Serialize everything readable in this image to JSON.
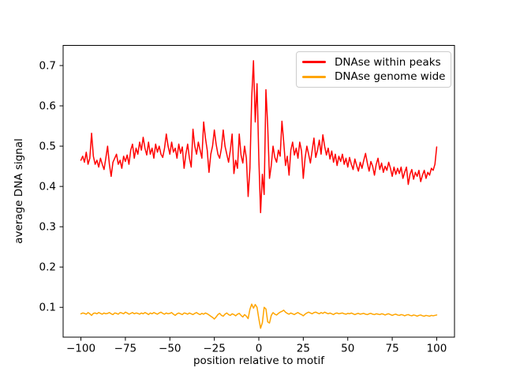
{
  "figure": {
    "background": "#ffffff"
  },
  "chart_data": {
    "type": "line",
    "title": "",
    "xlabel": "position relative to motif",
    "ylabel": "average DNA signal",
    "xlim": [
      -110,
      110
    ],
    "ylim": [
      0.026,
      0.75
    ],
    "grid": false,
    "legend": {
      "position": "upper right",
      "border_color": "#cccccc"
    },
    "x_ticks": [
      {
        "value": -100,
        "label": "−100"
      },
      {
        "value": -75,
        "label": "−75"
      },
      {
        "value": -50,
        "label": "−50"
      },
      {
        "value": -25,
        "label": "−25"
      },
      {
        "value": 0,
        "label": "0"
      },
      {
        "value": 25,
        "label": "25"
      },
      {
        "value": 50,
        "label": "50"
      },
      {
        "value": 75,
        "label": "75"
      },
      {
        "value": 100,
        "label": "100"
      }
    ],
    "y_ticks": [
      {
        "value": 0.1,
        "label": "0.1"
      },
      {
        "value": 0.2,
        "label": "0.2"
      },
      {
        "value": 0.3,
        "label": "0.3"
      },
      {
        "value": 0.4,
        "label": "0.4"
      },
      {
        "value": 0.5,
        "label": "0.5"
      },
      {
        "value": 0.6,
        "label": "0.6"
      },
      {
        "value": 0.7,
        "label": "0.7"
      }
    ],
    "series": [
      {
        "id": "dnase-within-peaks",
        "name": "DNAse within peaks",
        "color": "#ff0000",
        "x_start": -100,
        "x_step": 1,
        "values": [
          0.465,
          0.475,
          0.46,
          0.485,
          0.455,
          0.47,
          0.532,
          0.475,
          0.455,
          0.465,
          0.448,
          0.47,
          0.455,
          0.442,
          0.47,
          0.5,
          0.455,
          0.425,
          0.46,
          0.47,
          0.48,
          0.455,
          0.465,
          0.445,
          0.475,
          0.462,
          0.478,
          0.455,
          0.49,
          0.505,
          0.47,
          0.495,
          0.48,
          0.51,
          0.49,
          0.522,
          0.495,
          0.478,
          0.51,
          0.48,
          0.495,
          0.47,
          0.505,
          0.485,
          0.5,
          0.48,
          0.472,
          0.495,
          0.53,
          0.5,
          0.48,
          0.51,
          0.485,
          0.495,
          0.47,
          0.505,
          0.482,
          0.498,
          0.445,
          0.48,
          0.505,
          0.47,
          0.448,
          0.542,
          0.5,
          0.48,
          0.51,
          0.49,
          0.47,
          0.56,
          0.52,
          0.49,
          0.435,
          0.48,
          0.5,
          0.54,
          0.505,
          0.48,
          0.47,
          0.495,
          0.54,
          0.5,
          0.48,
          0.46,
          0.49,
          0.53,
          0.432,
          0.465,
          0.445,
          0.53,
          0.478,
          0.458,
          0.5,
          0.47,
          0.375,
          0.445,
          0.62,
          0.712,
          0.56,
          0.655,
          0.47,
          0.335,
          0.43,
          0.38,
          0.64,
          0.55,
          0.42,
          0.452,
          0.5,
          0.472,
          0.46,
          0.49,
          0.475,
          0.562,
          0.51,
          0.452,
          0.475,
          0.428,
          0.49,
          0.51,
          0.478,
          0.495,
          0.47,
          0.51,
          0.488,
          0.42,
          0.47,
          0.5,
          0.48,
          0.458,
          0.49,
          0.52,
          0.472,
          0.49,
          0.515,
          0.48,
          0.528,
          0.5,
          0.478,
          0.495,
          0.468,
          0.488,
          0.46,
          0.48,
          0.452,
          0.475,
          0.462,
          0.48,
          0.455,
          0.47,
          0.448,
          0.472,
          0.455,
          0.442,
          0.468,
          0.452,
          0.438,
          0.46,
          0.445,
          0.465,
          0.482,
          0.458,
          0.438,
          0.462,
          0.45,
          0.428,
          0.455,
          0.47,
          0.442,
          0.458,
          0.435,
          0.45,
          0.44,
          0.46,
          0.445,
          0.425,
          0.448,
          0.43,
          0.445,
          0.432,
          0.448,
          0.42,
          0.435,
          0.448,
          0.405,
          0.43,
          0.442,
          0.418,
          0.435,
          0.425,
          0.44,
          0.412,
          0.428,
          0.44,
          0.42,
          0.435,
          0.428,
          0.445,
          0.44,
          0.455,
          0.498
        ]
      },
      {
        "id": "dnase-genome-wide",
        "name": "DNAse genome wide",
        "color": "#ffa500",
        "x_start": -100,
        "x_step": 1,
        "values": [
          0.084,
          0.086,
          0.085,
          0.083,
          0.087,
          0.084,
          0.08,
          0.085,
          0.086,
          0.084,
          0.087,
          0.085,
          0.083,
          0.086,
          0.084,
          0.085,
          0.087,
          0.084,
          0.082,
          0.086,
          0.085,
          0.083,
          0.087,
          0.086,
          0.084,
          0.088,
          0.086,
          0.083,
          0.085,
          0.087,
          0.084,
          0.086,
          0.085,
          0.083,
          0.086,
          0.084,
          0.087,
          0.085,
          0.082,
          0.086,
          0.084,
          0.087,
          0.085,
          0.083,
          0.086,
          0.088,
          0.085,
          0.083,
          0.086,
          0.084,
          0.085,
          0.087,
          0.083,
          0.08,
          0.084,
          0.086,
          0.084,
          0.082,
          0.086,
          0.085,
          0.083,
          0.086,
          0.084,
          0.082,
          0.085,
          0.087,
          0.084,
          0.082,
          0.085,
          0.083,
          0.086,
          0.084,
          0.081,
          0.078,
          0.075,
          0.071,
          0.076,
          0.082,
          0.085,
          0.08,
          0.078,
          0.083,
          0.086,
          0.082,
          0.08,
          0.084,
          0.082,
          0.079,
          0.083,
          0.085,
          0.08,
          0.076,
          0.082,
          0.078,
          0.072,
          0.095,
          0.108,
          0.098,
          0.107,
          0.1,
          0.072,
          0.048,
          0.062,
          0.1,
          0.096,
          0.064,
          0.061,
          0.08,
          0.087,
          0.083,
          0.081,
          0.085,
          0.088,
          0.09,
          0.093,
          0.088,
          0.085,
          0.083,
          0.086,
          0.084,
          0.082,
          0.085,
          0.087,
          0.084,
          0.082,
          0.079,
          0.083,
          0.086,
          0.088,
          0.086,
          0.084,
          0.087,
          0.088,
          0.086,
          0.084,
          0.087,
          0.085,
          0.088,
          0.086,
          0.084,
          0.086,
          0.084,
          0.082,
          0.085,
          0.086,
          0.084,
          0.085,
          0.086,
          0.084,
          0.083,
          0.085,
          0.084,
          0.086,
          0.084,
          0.082,
          0.084,
          0.085,
          0.083,
          0.084,
          0.085,
          0.083,
          0.082,
          0.084,
          0.085,
          0.083,
          0.082,
          0.084,
          0.083,
          0.082,
          0.084,
          0.083,
          0.081,
          0.083,
          0.084,
          0.082,
          0.08,
          0.082,
          0.083,
          0.081,
          0.08,
          0.082,
          0.081,
          0.079,
          0.081,
          0.082,
          0.08,
          0.079,
          0.081,
          0.08,
          0.078,
          0.08,
          0.081,
          0.079,
          0.078,
          0.08,
          0.079,
          0.078,
          0.08,
          0.079,
          0.08,
          0.081
        ]
      }
    ]
  }
}
